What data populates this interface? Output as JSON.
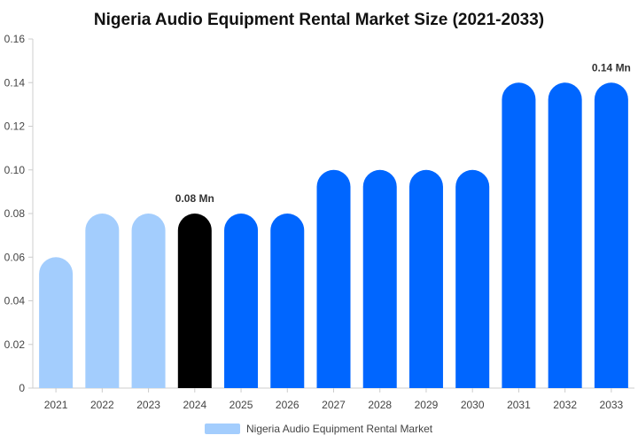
{
  "chart_data": {
    "type": "bar",
    "title": "Nigeria Audio Equipment Rental Market Size (2021-2033)",
    "xlabel": "",
    "ylabel": "",
    "categories": [
      "2021",
      "2022",
      "2023",
      "2024",
      "2025",
      "2026",
      "2027",
      "2028",
      "2029",
      "2030",
      "2031",
      "2032",
      "2033"
    ],
    "series": [
      {
        "name": "Nigeria Audio Equipment Rental Market",
        "values": [
          0.06,
          0.08,
          0.08,
          0.08,
          0.08,
          0.08,
          0.1,
          0.1,
          0.1,
          0.1,
          0.14,
          0.14,
          0.14
        ]
      }
    ],
    "bar_colors": [
      "#a3cdfd",
      "#a3cdfd",
      "#a3cdfd",
      "#000000",
      "#0066ff",
      "#0066ff",
      "#0066ff",
      "#0066ff",
      "#0066ff",
      "#0066ff",
      "#0066ff",
      "#0066ff",
      "#0066ff"
    ],
    "ylim": [
      0,
      0.16
    ],
    "yticks": [
      0,
      0.02,
      0.04,
      0.06,
      0.08,
      0.1,
      0.12,
      0.14,
      0.16
    ],
    "ytick_labels": [
      "0",
      "0.02",
      "0.04",
      "0.06",
      "0.08",
      "0.10",
      "0.12",
      "0.14",
      "0.16"
    ],
    "annotations": [
      {
        "category": "2024",
        "text": "0.08 Mn"
      },
      {
        "category": "2033",
        "text": "0.14 Mn"
      }
    ],
    "grid": false,
    "legend": {
      "position": "bottom-center",
      "label": "Nigeria Audio Equipment Rental Market",
      "color": "#a3cdfd"
    }
  }
}
